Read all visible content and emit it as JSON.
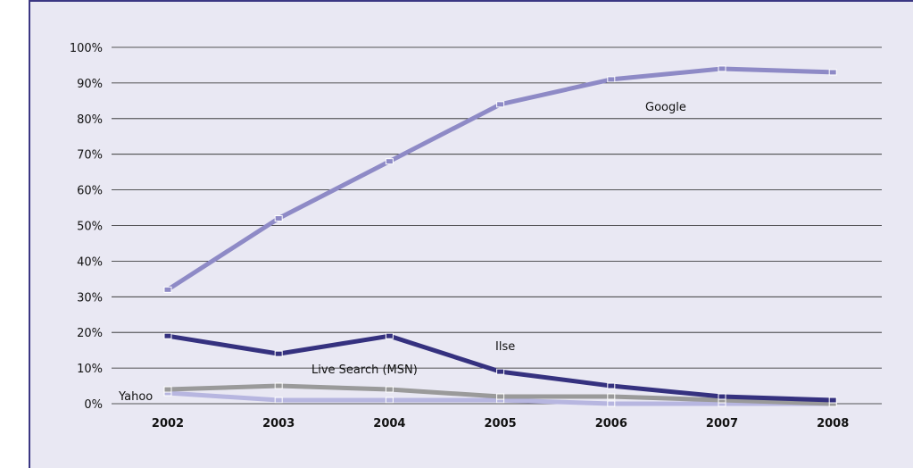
{
  "chart_data": {
    "type": "line",
    "title": "",
    "xlabel": "",
    "ylabel": "",
    "categories": [
      "2002",
      "2003",
      "2004",
      "2005",
      "2006",
      "2007",
      "2008"
    ],
    "y_ticks": [
      "0%",
      "10%",
      "20%",
      "30%",
      "40%",
      "50%",
      "60%",
      "70%",
      "80%",
      "90%",
      "100%"
    ],
    "ylim": [
      0,
      100
    ],
    "grid": true,
    "legend": "none",
    "series": [
      {
        "name": "Google",
        "color": "#8e8ac6",
        "values": [
          32,
          52,
          68,
          84,
          91,
          94,
          93
        ]
      },
      {
        "name": "Ilse",
        "color": "#35317f",
        "values": [
          19,
          14,
          19,
          9,
          5,
          2,
          1
        ]
      },
      {
        "name": "Live Search (MSN)",
        "color": "#9a9a9a",
        "values": [
          4,
          5,
          4,
          2,
          2,
          1,
          0
        ]
      },
      {
        "name": "Yahoo",
        "color": "#b7b6e0",
        "values": [
          3,
          1,
          1,
          1,
          0,
          0,
          0
        ]
      }
    ]
  },
  "colors": {
    "panel_background": "#e9e8f3",
    "frame_rule": "#3b3783",
    "gridline": "#222222"
  }
}
